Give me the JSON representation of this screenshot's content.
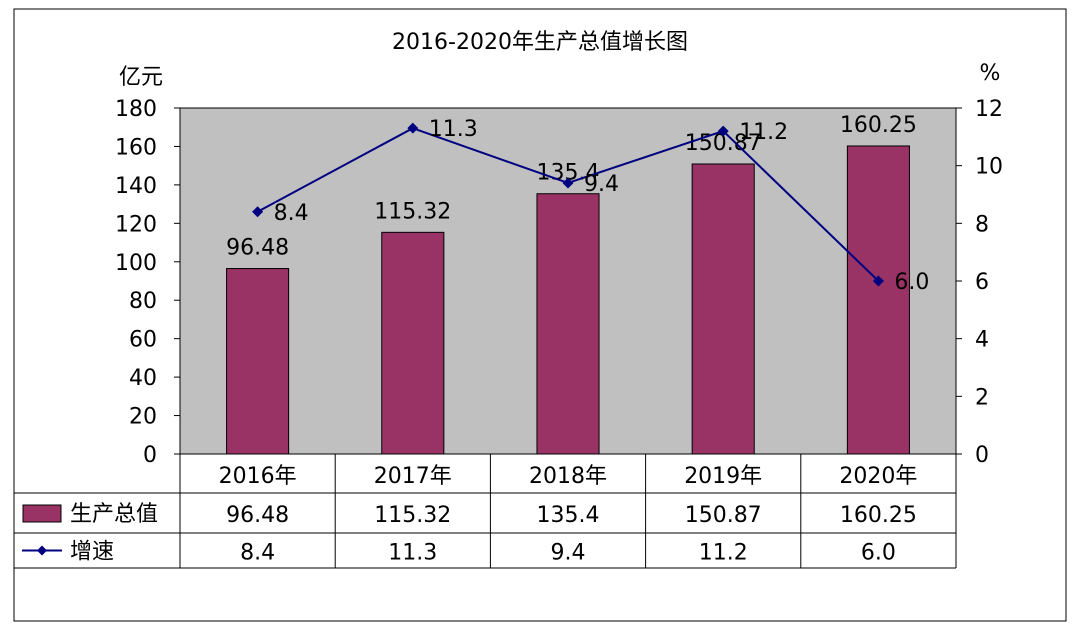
{
  "chart_data": {
    "type": "bar",
    "title": "2016-2020年生产总值增长图",
    "categories": [
      "2016年",
      "2017年",
      "2018年",
      "2019年",
      "2020年"
    ],
    "y_left_unit": "亿元",
    "y_right_unit": "%",
    "ylim_left": [
      0,
      180
    ],
    "ylim_right": [
      0,
      12
    ],
    "yticks_left": [
      0,
      20,
      40,
      60,
      80,
      100,
      120,
      140,
      160,
      180
    ],
    "yticks_right": [
      0,
      2,
      4,
      6,
      8,
      10,
      12
    ],
    "series": [
      {
        "name": "生产总值",
        "type": "bar",
        "axis": "left",
        "color": "#993366",
        "values": [
          96.48,
          115.32,
          135.4,
          150.87,
          160.25
        ],
        "labels": [
          "96.48",
          "115.32",
          "135.4",
          "150.87",
          "160.25"
        ]
      },
      {
        "name": "增速",
        "type": "line",
        "axis": "right",
        "color": "#000080",
        "values": [
          8.4,
          11.3,
          9.4,
          11.2,
          6.0
        ],
        "labels": [
          "8.4",
          "11.3",
          "9.4",
          "11.2",
          "6.0"
        ]
      }
    ],
    "plot_background": "#c0c0c0",
    "grid": false,
    "data_table": true
  }
}
